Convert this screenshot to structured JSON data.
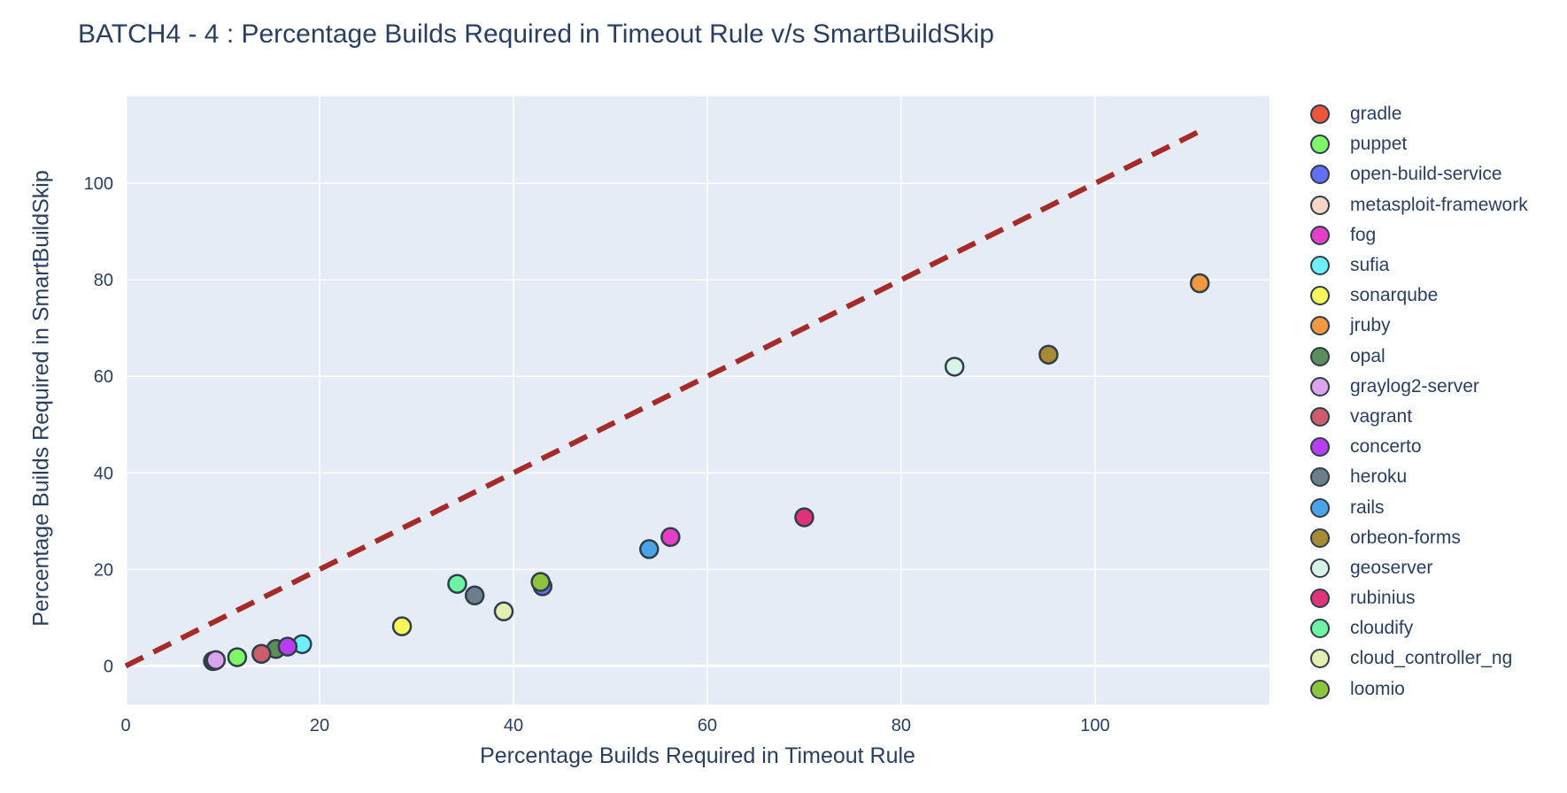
{
  "chart_data": {
    "type": "scatter",
    "title": "BATCH4 - 4 : Percentage Builds Required in Timeout Rule v/s SmartBuildSkip",
    "xlabel": "Percentage Builds Required in Timeout Rule",
    "ylabel": "Percentage Builds Required in SmartBuildSkip",
    "xlim": [
      0,
      118
    ],
    "ylim": [
      -8,
      118
    ],
    "x_ticks": [
      0,
      20,
      40,
      60,
      80,
      100
    ],
    "y_ticks": [
      0,
      20,
      40,
      60,
      80,
      100
    ],
    "grid": true,
    "legend_position": "right",
    "background": "#e5ecf6",
    "reference_line": {
      "x": [
        0,
        111
      ],
      "y": [
        0,
        111
      ],
      "color": "#a52a2a",
      "style": "dashed"
    },
    "series": [
      {
        "name": "gradle",
        "color": "#ef553b",
        "x": [
          9.0
        ],
        "y": [
          1.0
        ]
      },
      {
        "name": "puppet",
        "color": "#7ef769",
        "x": [
          11.5
        ],
        "y": [
          1.8
        ]
      },
      {
        "name": "open-build-service",
        "color": "#636efa",
        "x": [
          43.0
        ],
        "y": [
          16.5
        ]
      },
      {
        "name": "metasploit-framework",
        "color": "#f7d6c6",
        "x": [
          9.2
        ],
        "y": [
          1.1
        ]
      },
      {
        "name": "fog",
        "color": "#e63fc7",
        "x": [
          56.2
        ],
        "y": [
          26.7
        ]
      },
      {
        "name": "sufia",
        "color": "#6ef0fa",
        "x": [
          18.2
        ],
        "y": [
          4.5
        ]
      },
      {
        "name": "sonarqube",
        "color": "#f7f75a",
        "x": [
          28.5
        ],
        "y": [
          8.2
        ]
      },
      {
        "name": "jruby",
        "color": "#f3983e",
        "x": [
          110.8
        ],
        "y": [
          79.3
        ]
      },
      {
        "name": "opal",
        "color": "#5b8c5a",
        "x": [
          15.5
        ],
        "y": [
          3.5
        ]
      },
      {
        "name": "graylog2-server",
        "color": "#dca4ee",
        "x": [
          9.3
        ],
        "y": [
          1.2
        ]
      },
      {
        "name": "vagrant",
        "color": "#cd5c6c",
        "x": [
          14.0
        ],
        "y": [
          2.5
        ]
      },
      {
        "name": "concerto",
        "color": "#b63ef0",
        "x": [
          16.7
        ],
        "y": [
          4.0
        ]
      },
      {
        "name": "heroku",
        "color": "#6c7e8c",
        "x": [
          36.0
        ],
        "y": [
          14.6
        ]
      },
      {
        "name": "rails",
        "color": "#4aa3e8",
        "x": [
          54.0
        ],
        "y": [
          24.2
        ]
      },
      {
        "name": "orbeon-forms",
        "color": "#a68a34",
        "x": [
          95.2
        ],
        "y": [
          64.5
        ]
      },
      {
        "name": "geoserver",
        "color": "#d8f4e6",
        "x": [
          85.5
        ],
        "y": [
          62.0
        ]
      },
      {
        "name": "rubinius",
        "color": "#e0347a",
        "x": [
          70.0
        ],
        "y": [
          30.8
        ]
      },
      {
        "name": "cloudify",
        "color": "#6ef2a3",
        "x": [
          34.2
        ],
        "y": [
          17.0
        ]
      },
      {
        "name": "cloud_controller_ng",
        "color": "#e4edb2",
        "x": [
          39.0
        ],
        "y": [
          11.3
        ]
      },
      {
        "name": "loomio",
        "color": "#8dc43e",
        "x": [
          42.8
        ],
        "y": [
          17.4
        ]
      }
    ]
  }
}
